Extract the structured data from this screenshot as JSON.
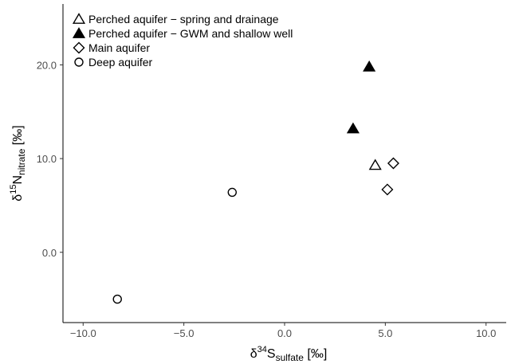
{
  "chart_data": {
    "type": "scatter",
    "xlim": [
      -11.0,
      11.0
    ],
    "ylim": [
      -7.5,
      26.5
    ],
    "x_ticks": [
      -10.0,
      -5.0,
      0.0,
      5.0,
      10.0
    ],
    "x_tick_labels": [
      "−10.0",
      "−5.0",
      "0.0",
      "5.0",
      "10.0"
    ],
    "y_ticks": [
      0.0,
      10.0,
      20.0
    ],
    "y_tick_labels": [
      "0.0",
      "10.0",
      "20.0"
    ],
    "xlabel": {
      "base": "δ",
      "sup": "34",
      "main": "S",
      "sub": "sulfate",
      "unit": " [‰]"
    },
    "ylabel": {
      "base": "δ",
      "sup": "15",
      "main": "N",
      "sub": "nitrate",
      "unit": " [‰]"
    },
    "grid": false,
    "legend_position": "top-left",
    "series": [
      {
        "name": "Perched aquifer − spring and drainage",
        "marker": "triangle-open",
        "points": [
          {
            "x": 4.5,
            "y": 9.3
          }
        ]
      },
      {
        "name": "Perched aquifer − GWM and shallow well",
        "marker": "triangle-filled",
        "points": [
          {
            "x": 4.2,
            "y": 19.8
          },
          {
            "x": 3.4,
            "y": 13.2
          }
        ]
      },
      {
        "name": "Main aquifer",
        "marker": "diamond-open",
        "points": [
          {
            "x": 5.4,
            "y": 9.5
          },
          {
            "x": 5.1,
            "y": 6.7
          }
        ]
      },
      {
        "name": "Deep aquifer",
        "marker": "circle-open",
        "points": [
          {
            "x": -2.6,
            "y": 6.4
          },
          {
            "x": -8.3,
            "y": -5.0
          }
        ]
      }
    ]
  }
}
